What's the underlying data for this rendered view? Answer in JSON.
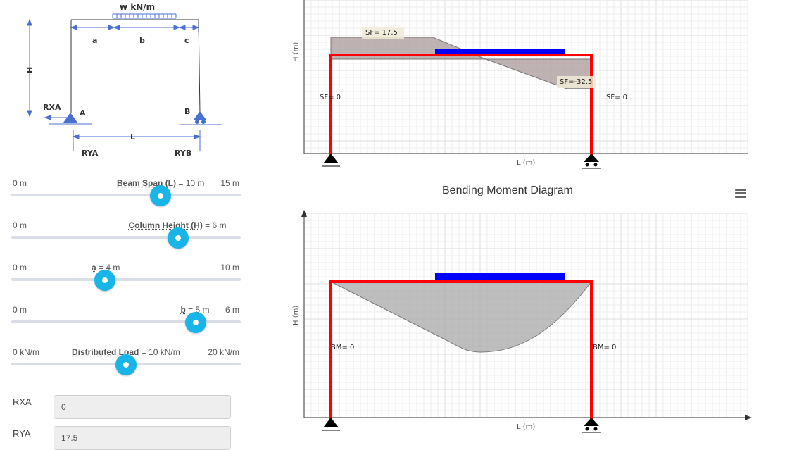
{
  "schematic": {
    "load_label": "w kN/m",
    "seg_a": "a",
    "seg_b": "b",
    "seg_c": "c",
    "height_label": "H",
    "span_label": "L",
    "support_a": "A",
    "support_b": "B",
    "rxa": "RXA",
    "rya": "RYA",
    "ryb": "RYB"
  },
  "sliders": [
    {
      "name": "Beam Span (L)",
      "value_text": " = 10 m",
      "min_text": "0 m",
      "max_text": "15 m",
      "value": 10,
      "min": 0,
      "max": 15
    },
    {
      "name": "Column Height (H)",
      "value_text": " = 6 m",
      "min_text": "0 m",
      "max_text": "",
      "value": 6,
      "min": 0,
      "max": 8
    },
    {
      "name": "a",
      "value_text": " = 4 m",
      "min_text": "0 m",
      "max_text": "10 m",
      "value": 4,
      "min": 0,
      "max": 10
    },
    {
      "name": "b",
      "value_text": " = 5 m",
      "min_text": "0 m",
      "max_text": "6 m",
      "value": 5,
      "min": 0,
      "max": 6
    },
    {
      "name": "Distributed Load",
      "value_text": " = 10 kN/m",
      "min_text": "0 kN/m",
      "max_text": "20 kN/m",
      "value": 10,
      "min": 0,
      "max": 20
    }
  ],
  "results": [
    {
      "label": "RXA",
      "value": "0"
    },
    {
      "label": "RYA",
      "value": "17.5"
    }
  ],
  "shear_chart": {
    "xlabel": "L (m)",
    "ylabel": "H (m)",
    "labels": {
      "sf_max": "SF= 17.5",
      "sf_min": "SF=-32.5",
      "sf_left": "SF= 0",
      "sf_right": "SF= 0"
    }
  },
  "moment_chart": {
    "title": "Bending Moment Diagram",
    "xlabel": "L (m)",
    "ylabel": "H (m)",
    "labels": {
      "bm_left": "BM= 0",
      "bm_right": "BM= 0"
    }
  },
  "colors": {
    "frame": "#ff0000",
    "load": "#0000ff",
    "knob": "#19b5e8",
    "diagram_fill": "#a0a0a0"
  }
}
